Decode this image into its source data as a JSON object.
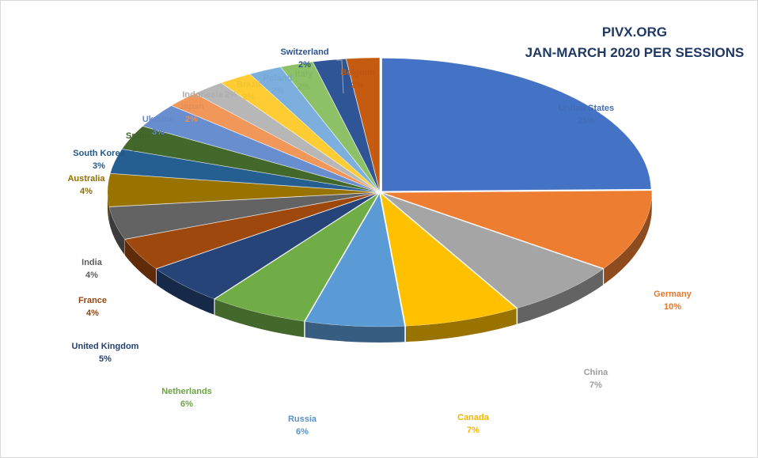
{
  "chart_data": {
    "type": "pie",
    "style": "3d-exploded-pie",
    "title": [
      "PIVX.ORG",
      "JAN-MARCH 2020 PER SESSIONS"
    ],
    "legend": "none",
    "slices": [
      {
        "name": "United States",
        "value": 25,
        "label": "25%",
        "color": "#4472c4"
      },
      {
        "name": "Germany",
        "value": 10,
        "label": "10%",
        "color": "#ed7d31"
      },
      {
        "name": "China",
        "value": 7,
        "label": "7%",
        "color": "#a5a5a5"
      },
      {
        "name": "Canada",
        "value": 7,
        "label": "7%",
        "color": "#ffc000"
      },
      {
        "name": "Russia",
        "value": 6,
        "label": "6%",
        "color": "#5b9bd5"
      },
      {
        "name": "Netherlands",
        "value": 6,
        "label": "6%",
        "color": "#70ad47"
      },
      {
        "name": "United Kingdom",
        "value": 5,
        "label": "5%",
        "color": "#264478"
      },
      {
        "name": "France",
        "value": 4,
        "label": "4%",
        "color": "#9e480e"
      },
      {
        "name": "India",
        "value": 4,
        "label": "4%",
        "color": "#636363"
      },
      {
        "name": "Australia",
        "value": 4,
        "label": "4%",
        "color": "#997300"
      },
      {
        "name": "South Korea",
        "value": 3,
        "label": "3%",
        "color": "#255e91"
      },
      {
        "name": "Spain",
        "value": 3,
        "label": "3%",
        "color": "#43682b"
      },
      {
        "name": "Ukraine",
        "value": 3,
        "label": "3%",
        "color": "#698ed0"
      },
      {
        "name": "Japan",
        "value": 2,
        "label": "2%",
        "color": "#f1975a"
      },
      {
        "name": "Indonesia",
        "value": 2,
        "label": "2%",
        "color": "#b7b7b7"
      },
      {
        "name": "Brazil",
        "value": 2,
        "label": "2%",
        "color": "#ffcd33"
      },
      {
        "name": "Poland",
        "value": 2,
        "label": "2%",
        "color": "#7cafdd"
      },
      {
        "name": "Italy",
        "value": 2,
        "label": "2%",
        "color": "#8cc168"
      },
      {
        "name": "Switzerland",
        "value": 2,
        "label": "2%",
        "color": "#2f5597"
      },
      {
        "name": "Belgium",
        "value": 2,
        "label": "2%",
        "color": "#c55a11"
      }
    ]
  }
}
